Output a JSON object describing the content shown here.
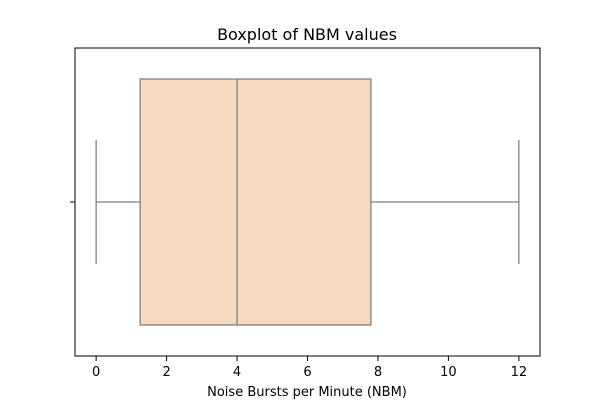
{
  "chart_data": {
    "type": "boxplot",
    "title": "Boxplot of NBM values",
    "xlabel": "Noise Bursts per Minute (NBM)",
    "ylabel": "",
    "xlim": [
      -0.6,
      12.6
    ],
    "xticks": [
      0,
      2,
      4,
      6,
      8,
      10,
      12
    ],
    "grid": false,
    "box": {
      "whisker_low": 0,
      "q1": 1.25,
      "median": 4,
      "q3": 7.8,
      "whisker_high": 12
    },
    "colors": {
      "box_fill": "#f6d9bf",
      "line": "#808080"
    }
  }
}
